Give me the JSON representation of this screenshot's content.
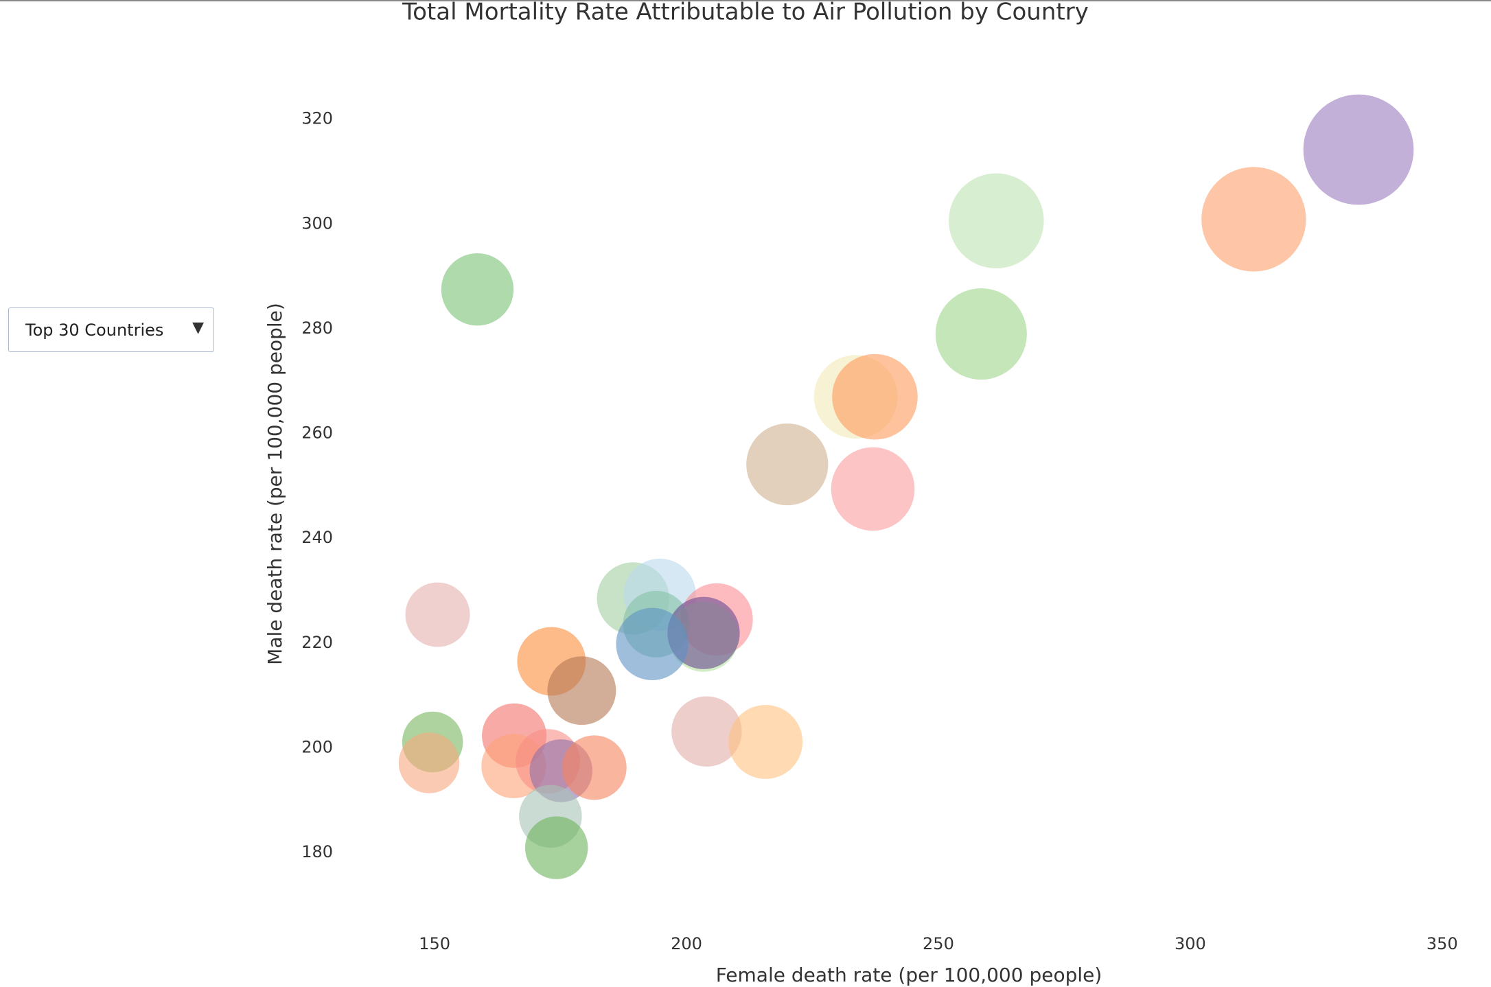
{
  "dropdown": {
    "selected": "Top 30 Countries"
  },
  "chart_data": {
    "type": "bubble",
    "title": "Total Mortality Rate Attributable to Air Pollution by Country",
    "x_label": "Female death rate (per 100,000 people)",
    "y_label": "Male death rate (per 100,000 people)",
    "xlim": [
      133.5,
      359.7
    ],
    "xticks": [
      150,
      200,
      250,
      300,
      350
    ],
    "ylim": [
      168.2,
      335.3
    ],
    "yticks": [
      180,
      200,
      220,
      240,
      260,
      280,
      300,
      320
    ],
    "grid": false,
    "x": [
      333.4,
      312.6,
      261.5,
      158.5,
      258.5,
      233.6,
      237.4,
      220.0,
      237.0,
      150.6,
      189.4,
      194.7,
      206.0,
      194.0,
      203.4,
      203.4,
      193.2,
      173.2,
      179.2,
      149.6,
      148.9,
      165.8,
      165.7,
      172.5,
      175.1,
      181.7,
      173.0,
      174.2,
      204.0,
      215.7
    ],
    "values": [
      314.2,
      300.9,
      300.6,
      287.5,
      279.0,
      267.0,
      267.0,
      254.1,
      249.4,
      225.4,
      228.5,
      229.2,
      224.5,
      223.6,
      221.2,
      221.9,
      219.8,
      216.5,
      210.9,
      201.1,
      197.1,
      202.3,
      196.5,
      197.4,
      195.6,
      196.2,
      186.9,
      180.9,
      203.1,
      201.1
    ],
    "sizes": [
      325,
      308,
      280,
      213,
      269,
      246,
      252,
      241,
      246,
      190,
      213,
      213,
      213,
      196,
      207,
      213,
      213,
      202,
      202,
      179,
      179,
      190,
      190,
      190,
      185,
      190,
      185,
      185,
      207,
      218
    ],
    "colors": [
      "#9b7cbf",
      "#fd9f6a",
      "#bde3b0",
      "#78c174",
      "#9fd58a",
      "#f2e9b6",
      "#fd9a5c",
      "#cfb08f",
      "#fc9da0",
      "#e6b0ad",
      "#a3cfa3",
      "#b9d9ec",
      "#fc8e95",
      "#86c2a5",
      "#b6e2a0",
      "#6a4a93",
      "#5d93c4",
      "#fd8d3c",
      "#b47754",
      "#78b55f",
      "#f6a87e",
      "#f4726a",
      "#fda478",
      "#f98e86",
      "#8f6fa8",
      "#f6835f",
      "#a6c3b6",
      "#6db35b",
      "#e3ada6",
      "#ffc281"
    ]
  }
}
